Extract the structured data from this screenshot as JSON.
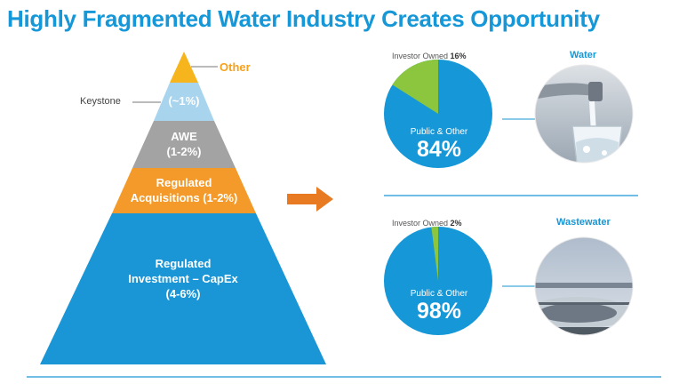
{
  "title": "Highly Fragmented Water Industry Creates Opportunity",
  "pyramid": {
    "other_label": "Other",
    "keystone_label": "Keystone",
    "tiers": [
      {
        "lines": [
          "(~1%)"
        ],
        "color": "#a8d4ee"
      },
      {
        "lines": [
          "AWE",
          "(1-2%)"
        ],
        "color": "#a3a3a3"
      },
      {
        "lines": [
          "Regulated",
          "Acquisitions (1-2%)"
        ],
        "color": "#f39a2a"
      },
      {
        "lines": [
          "Regulated",
          "Investment – CapEx",
          "(4-6%)"
        ],
        "color": "#1a96d6"
      }
    ],
    "apex_color": "#f6b51c"
  },
  "charts": [
    {
      "category": "Water",
      "investor_label": "Investor Owned",
      "investor_pct": "16%",
      "public_label": "Public & Other",
      "public_pct": "84%",
      "investor_value": 16,
      "public_value": 84
    },
    {
      "category": "Wastewater",
      "investor_label": "Investor Owned",
      "investor_pct": "2%",
      "public_label": "Public & Other",
      "public_pct": "98%",
      "investor_value": 2,
      "public_value": 98
    }
  ],
  "colors": {
    "accent": "#1597d8",
    "investor_slice": "#8cc63f",
    "arrow": "#e87b22"
  }
}
